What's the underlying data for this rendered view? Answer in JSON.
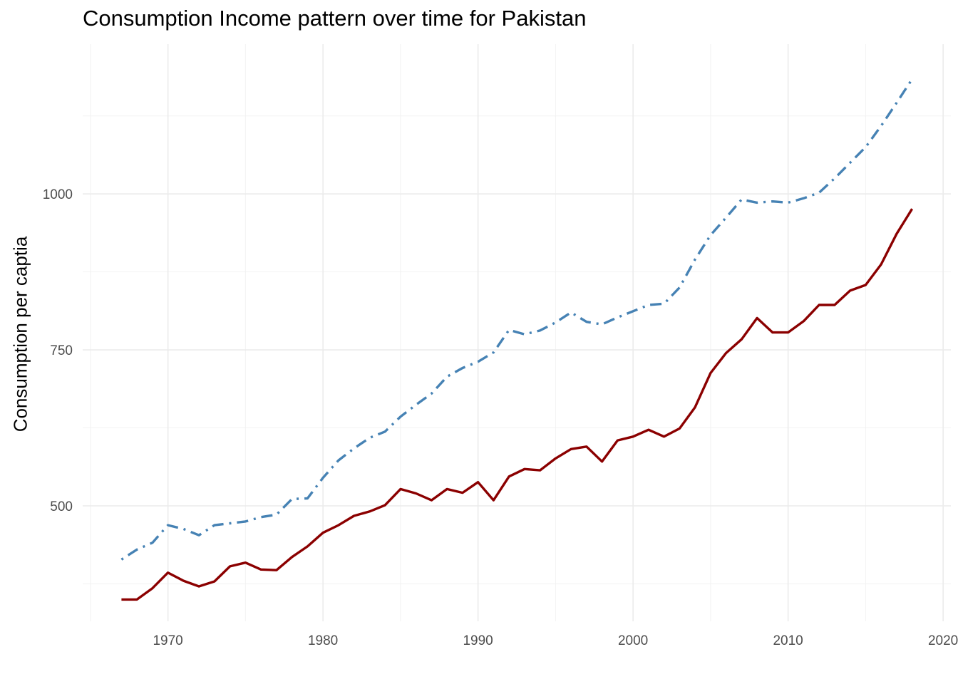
{
  "chart_data": {
    "type": "line",
    "title": "Consumption Income pattern over time for Pakistan",
    "xlabel": "",
    "ylabel": "Consumption per captia",
    "xlim": [
      1964.5,
      2020.5
    ],
    "ylim": [
      315,
      1240
    ],
    "x_ticks": [
      1970,
      1980,
      1990,
      2000,
      2010,
      2020
    ],
    "y_ticks": [
      500,
      750,
      1000
    ],
    "grid": true,
    "legend": "none",
    "x": [
      1967,
      1968,
      1969,
      1970,
      1971,
      1972,
      1973,
      1974,
      1975,
      1976,
      1977,
      1978,
      1979,
      1980,
      1981,
      1982,
      1983,
      1984,
      1985,
      1986,
      1987,
      1988,
      1989,
      1990,
      1991,
      1992,
      1993,
      1994,
      1995,
      1996,
      1997,
      1998,
      1999,
      2000,
      2001,
      2002,
      2003,
      2004,
      2005,
      2006,
      2007,
      2008,
      2009,
      2010,
      2011,
      2012,
      2013,
      2014,
      2015,
      2016,
      2017,
      2018
    ],
    "series": [
      {
        "color": "#8B0000",
        "style": "solid",
        "values": [
          350,
          350,
          368,
          393,
          380,
          371,
          379,
          403,
          409,
          398,
          397,
          418,
          435,
          457,
          469,
          484,
          491,
          501,
          527,
          520,
          509,
          527,
          521,
          538,
          509,
          547,
          559,
          557,
          576,
          591,
          595,
          571,
          605,
          611,
          622,
          611,
          624,
          658,
          713,
          745,
          767,
          801,
          778,
          778,
          796,
          822,
          822,
          845,
          854,
          887,
          936,
          976
        ]
      },
      {
        "color": "#4682B4",
        "style": "dotdash",
        "values": [
          414,
          430,
          441,
          469,
          463,
          453,
          469,
          472,
          475,
          482,
          486,
          511,
          512,
          545,
          573,
          592,
          609,
          619,
          643,
          662,
          680,
          707,
          721,
          731,
          746,
          782,
          775,
          781,
          794,
          810,
          795,
          791,
          802,
          812,
          822,
          824,
          850,
          895,
          934,
          962,
          991,
          986,
          988,
          986,
          993,
          1002,
          1025,
          1050,
          1075,
          1109,
          1146,
          1184
        ]
      }
    ]
  }
}
